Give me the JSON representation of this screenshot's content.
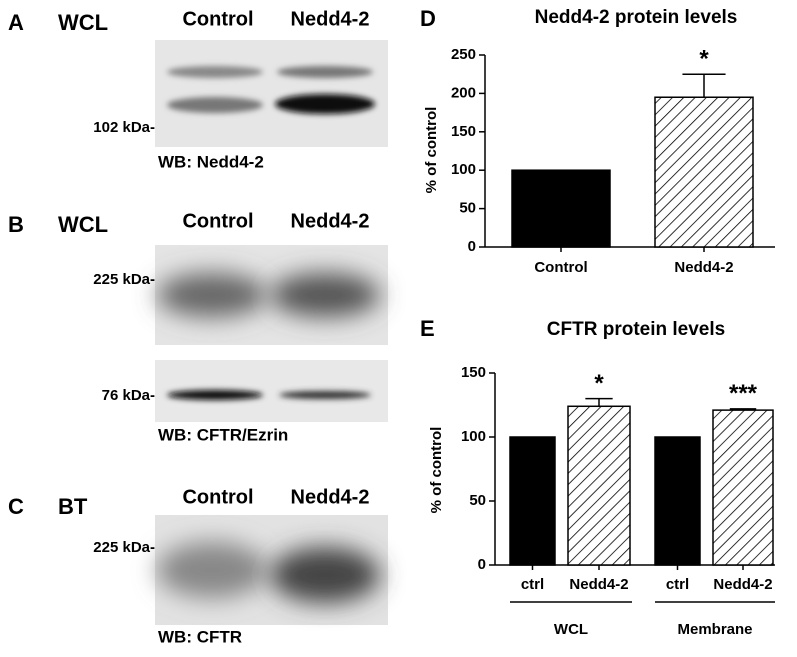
{
  "blots": [
    {
      "letter": "A",
      "sample": "WCL",
      "lanes": [
        "Control",
        "Nedd4-2"
      ],
      "markers": [
        "102 kDa-"
      ],
      "caption": "WB: Nedd4-2"
    },
    {
      "letter": "B",
      "sample": "WCL",
      "lanes": [
        "Control",
        "Nedd4-2"
      ],
      "markers": [
        "225 kDa-",
        "76 kDa-"
      ],
      "caption": "WB: CFTR/Ezrin"
    },
    {
      "letter": "C",
      "sample": "BT",
      "lanes": [
        "Control",
        "Nedd4-2"
      ],
      "markers": [
        "225 kDa-"
      ],
      "caption": "WB: CFTR"
    }
  ],
  "chart_data": [
    {
      "type": "bar",
      "panel": "D",
      "title": "Nedd4-2 protein levels",
      "ylabel": "% of control",
      "categories": [
        "Control",
        "Nedd4-2"
      ],
      "values": [
        100,
        195
      ],
      "errors": [
        null,
        30
      ],
      "annotations": [
        null,
        "*"
      ],
      "fills": [
        "#000000",
        "hatch"
      ],
      "ylim": [
        0,
        250
      ],
      "yticks": [
        0,
        50,
        100,
        150,
        200,
        250
      ]
    },
    {
      "type": "bar",
      "panel": "E",
      "title": "CFTR protein levels",
      "ylabel": "% of control",
      "categories": [
        "ctrl",
        "Nedd4-2",
        "ctrl",
        "Nedd4-2"
      ],
      "values": [
        100,
        124,
        100,
        121
      ],
      "errors": [
        null,
        6,
        null,
        1
      ],
      "annotations": [
        null,
        "*",
        null,
        "***"
      ],
      "fills": [
        "#000000",
        "hatch",
        "#000000",
        "hatch"
      ],
      "groups": [
        {
          "label": "WCL",
          "span": 2
        },
        {
          "label": "Membrane",
          "span": 2
        }
      ],
      "ylim": [
        0,
        150
      ],
      "yticks": [
        0,
        50,
        100,
        150
      ]
    }
  ]
}
